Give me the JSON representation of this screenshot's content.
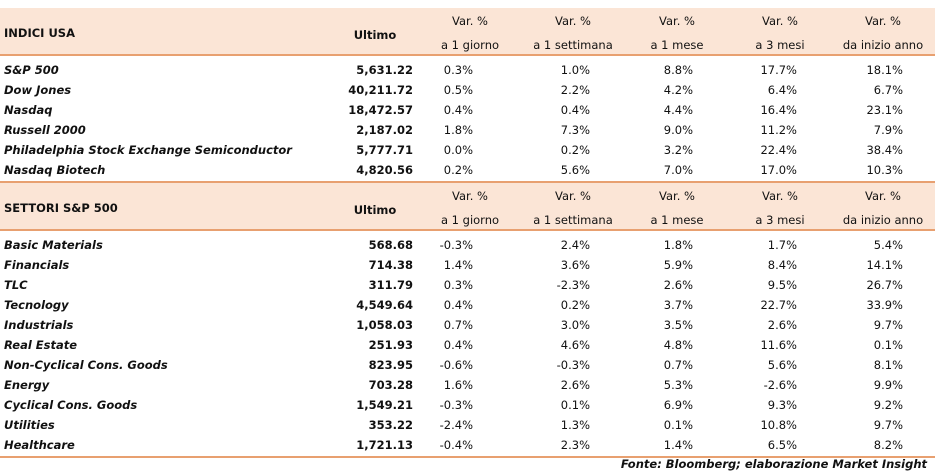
{
  "tables": [
    {
      "header": {
        "title": "INDICI USA",
        "ultimo": "Ultimo",
        "columns": [
          {
            "line1": "Var. %",
            "line2": "a 1 giorno"
          },
          {
            "line1": "Var. %",
            "line2": "a 1 settimana"
          },
          {
            "line1": "Var. %",
            "line2": "a 1 mese"
          },
          {
            "line1": "Var. %",
            "line2": "a 3 mesi"
          },
          {
            "line1": "Var. %",
            "line2": "da inizio anno"
          }
        ]
      },
      "rows": [
        [
          "S&P 500",
          "5,631.22",
          "0.3%",
          "1.0%",
          "8.8%",
          "17.7%",
          "18.1%"
        ],
        [
          "Dow Jones",
          "40,211.72",
          "0.5%",
          "2.2%",
          "4.2%",
          "6.4%",
          "6.7%"
        ],
        [
          "Nasdaq",
          "18,472.57",
          "0.4%",
          "0.4%",
          "4.4%",
          "16.4%",
          "23.1%"
        ],
        [
          "Russell 2000",
          "2,187.02",
          "1.8%",
          "7.3%",
          "9.0%",
          "11.2%",
          "7.9%"
        ],
        [
          "Philadelphia Stock Exchange Semiconductor",
          "5,777.71",
          "0.0%",
          "0.2%",
          "3.2%",
          "22.4%",
          "38.4%"
        ],
        [
          "Nasdaq Biotech",
          "4,820.56",
          "0.2%",
          "5.6%",
          "7.0%",
          "17.0%",
          "10.3%"
        ]
      ]
    },
    {
      "header": {
        "title": "SETTORI S&P 500",
        "ultimo": "Ultimo",
        "columns": [
          {
            "line1": "Var. %",
            "line2": "a 1 giorno"
          },
          {
            "line1": "Var. %",
            "line2": "a 1 settimana"
          },
          {
            "line1": "Var. %",
            "line2": "a 1 mese"
          },
          {
            "line1": "Var. %",
            "line2": "a 3 mesi"
          },
          {
            "line1": "Var. %",
            "line2": "da inizio anno"
          }
        ]
      },
      "rows": [
        [
          "Basic Materials",
          "568.68",
          "-0.3%",
          "2.4%",
          "1.8%",
          "1.7%",
          "5.4%"
        ],
        [
          "Financials",
          "714.38",
          "1.4%",
          "3.6%",
          "5.9%",
          "8.4%",
          "14.1%"
        ],
        [
          "TLC",
          "311.79",
          "0.3%",
          "-2.3%",
          "2.6%",
          "9.5%",
          "26.7%"
        ],
        [
          "Tecnology",
          "4,549.64",
          "0.4%",
          "0.2%",
          "3.7%",
          "22.7%",
          "33.9%"
        ],
        [
          "Industrials",
          "1,058.03",
          "0.7%",
          "3.0%",
          "3.5%",
          "2.6%",
          "9.7%"
        ],
        [
          "Real Estate",
          "251.93",
          "0.4%",
          "4.6%",
          "4.8%",
          "11.6%",
          "0.1%"
        ],
        [
          "Non-Cyclical Cons. Goods",
          "823.95",
          "-0.6%",
          "-0.3%",
          "0.7%",
          "5.6%",
          "8.1%"
        ],
        [
          "Energy",
          "703.28",
          "1.6%",
          "2.6%",
          "5.3%",
          "-2.6%",
          "9.9%"
        ],
        [
          "Cyclical Cons. Goods",
          "1,549.21",
          "-0.3%",
          "0.1%",
          "6.9%",
          "9.3%",
          "9.2%"
        ],
        [
          "Utilities",
          "353.22",
          "-2.4%",
          "1.3%",
          "0.1%",
          "10.8%",
          "9.7%"
        ],
        [
          "Healthcare",
          "1,721.13",
          "-0.4%",
          "2.3%",
          "1.4%",
          "6.5%",
          "8.2%"
        ]
      ]
    }
  ],
  "source": "Fonte: Bloomberg; elaborazione Market Insight"
}
